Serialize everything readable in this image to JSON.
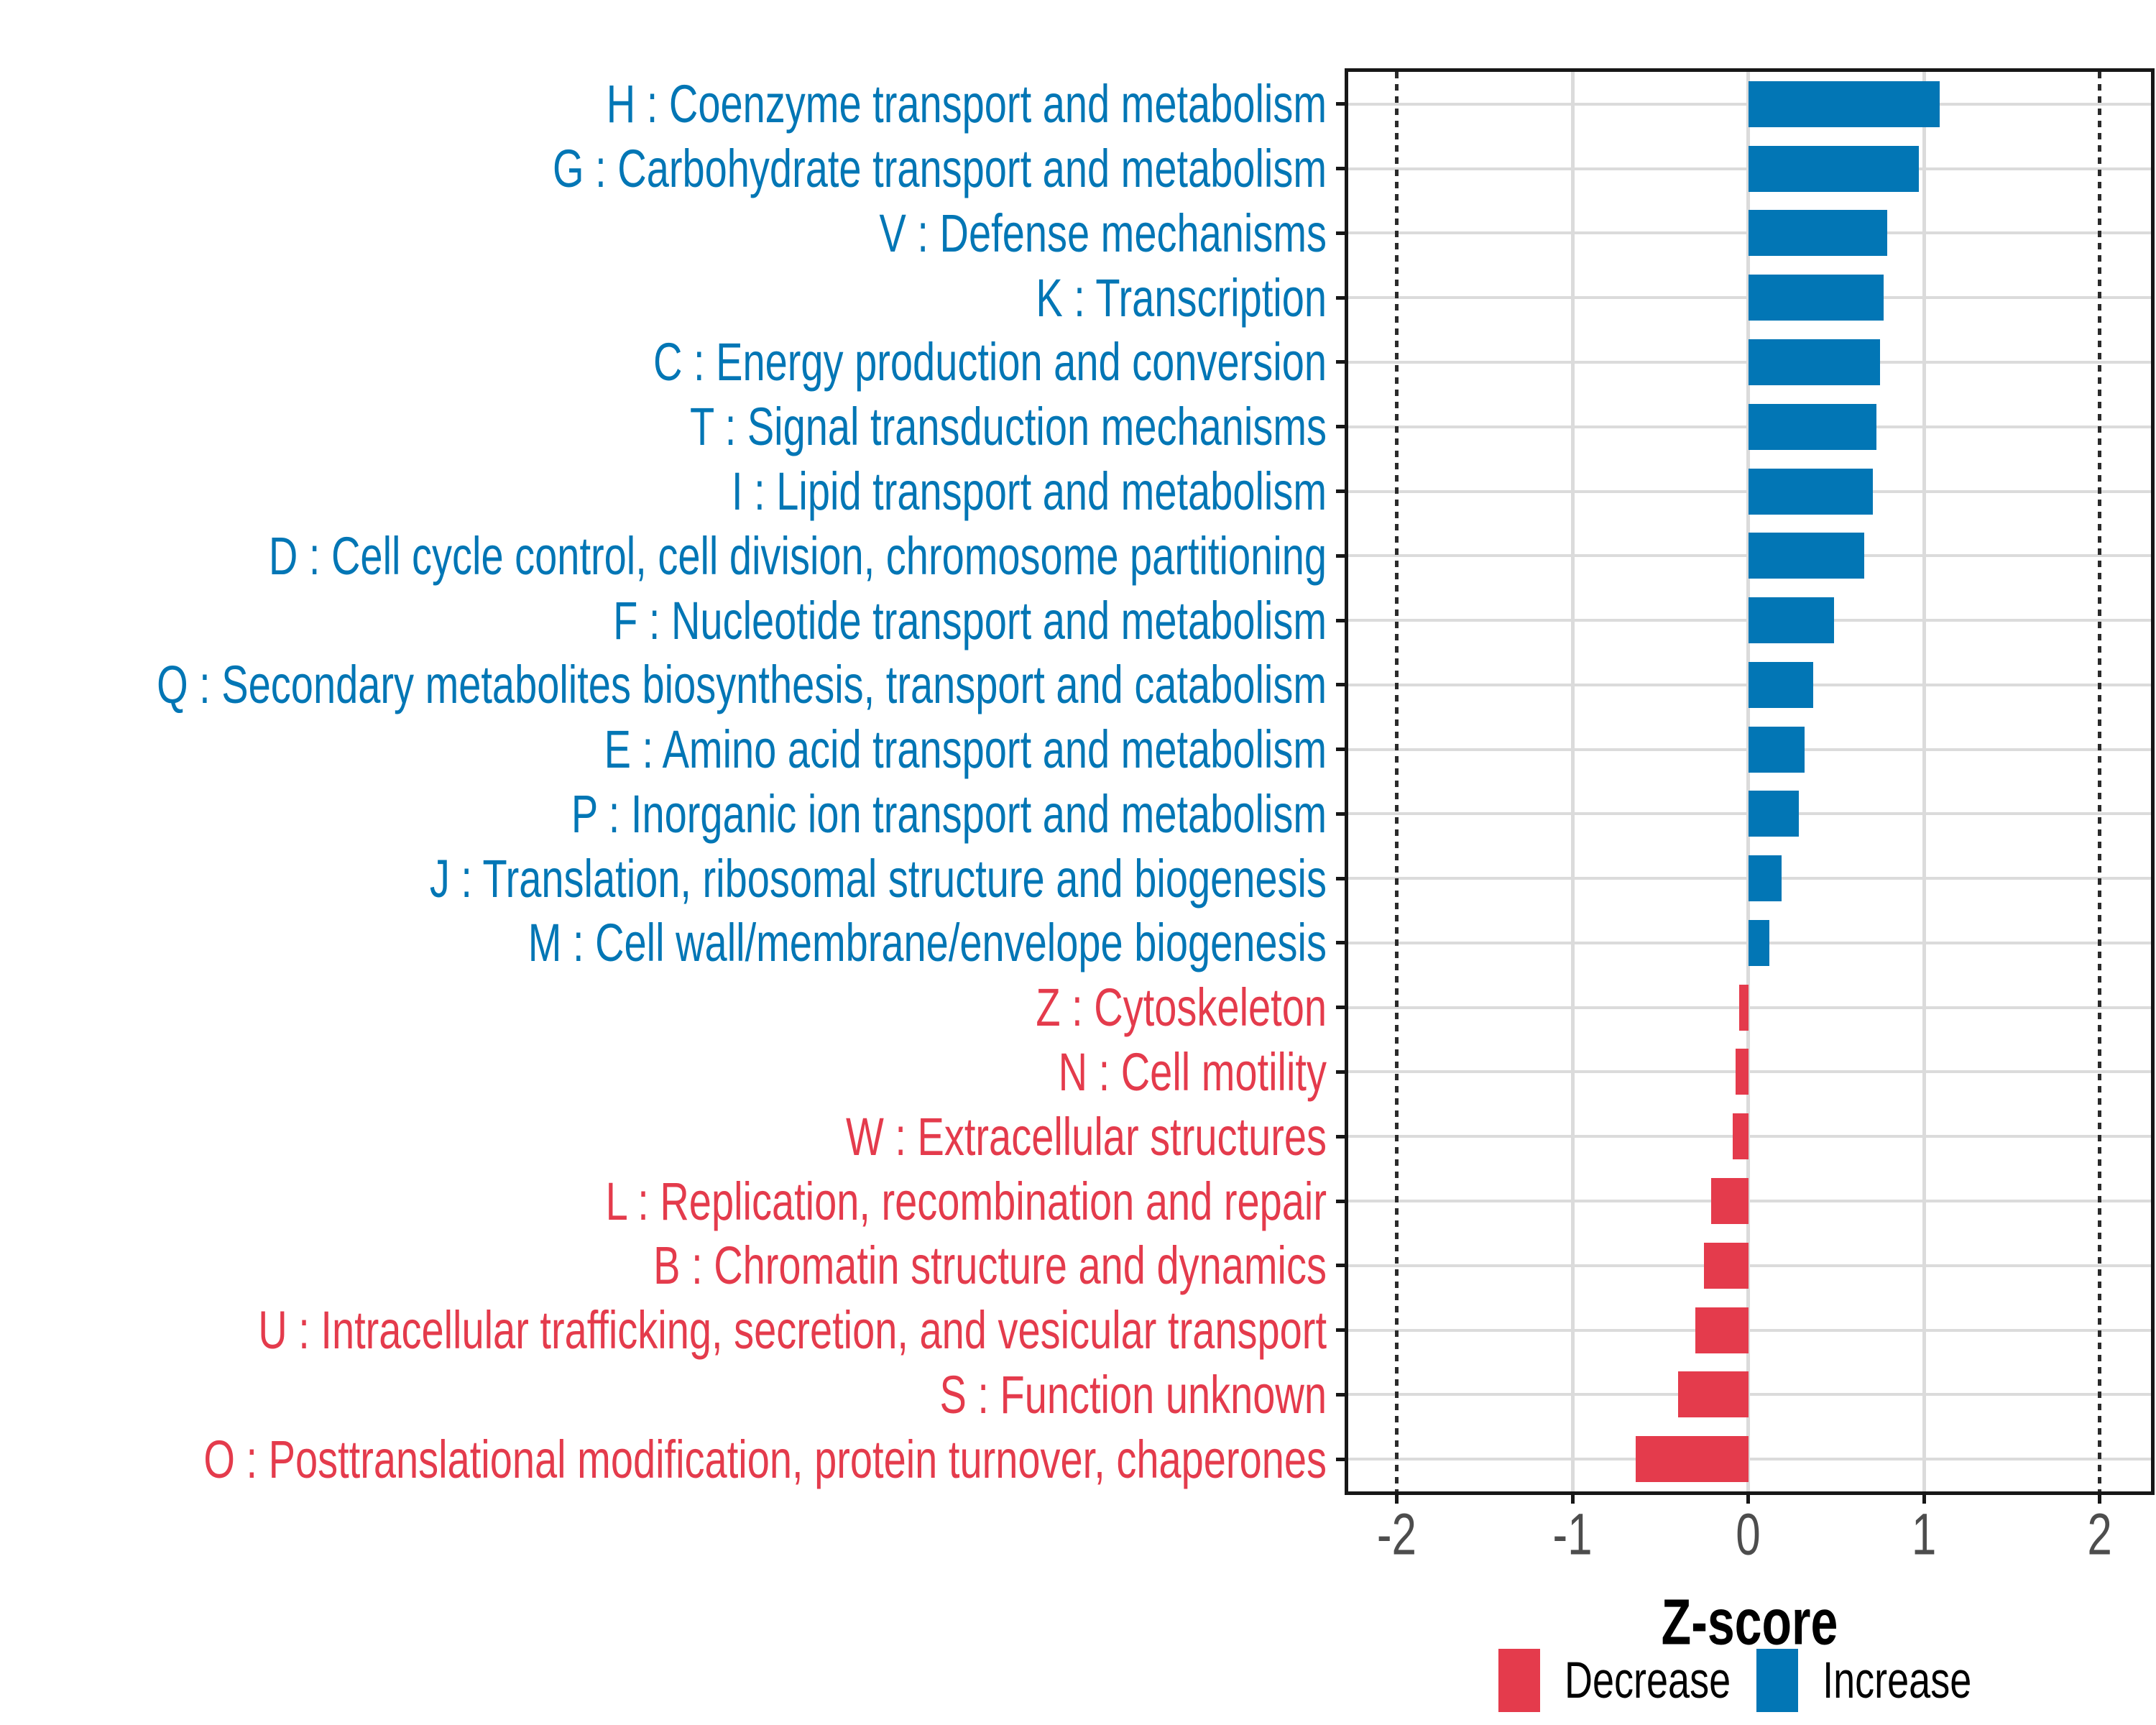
{
  "chart_data": {
    "type": "bar",
    "orientation": "horizontal",
    "title": "",
    "xlabel": "Z-score",
    "xlim": [
      -2.276,
      2.292
    ],
    "x_ticks": [
      -2,
      -1,
      0,
      1,
      2
    ],
    "x_tick_labels": [
      "-2",
      "-1",
      "0",
      "1",
      "2"
    ],
    "solid_gridlines_x": [
      -1,
      0,
      1
    ],
    "dotted_reference_lines_x": [
      -2,
      2
    ],
    "grid": "on",
    "legend_position": "bottom-right",
    "categories": [
      "H : Coenzyme transport and metabolism",
      "G : Carbohydrate transport and metabolism",
      "V : Defense mechanisms",
      "K : Transcription",
      "C : Energy production and conversion",
      "T : Signal transduction mechanisms",
      "I : Lipid transport and metabolism",
      "D : Cell cycle control, cell division, chromosome partitioning",
      "F : Nucleotide transport and metabolism",
      "Q : Secondary metabolites biosynthesis, transport and catabolism",
      "E : Amino acid transport and metabolism",
      "P : Inorganic ion transport and metabolism",
      "J : Translation, ribosomal structure and biogenesis",
      "M : Cell wall/membrane/envelope biogenesis",
      "Z : Cytoskeleton",
      "N : Cell motility",
      "W : Extracellular structures",
      "L : Replication, recombination and repair",
      "B : Chromatin structure and dynamics",
      "U : Intracellular trafficking, secretion, and vesicular transport",
      "S : Function unknown",
      "O : Posttranslational modification, protein turnover, chaperones"
    ],
    "values": [
      1.09,
      0.97,
      0.79,
      0.77,
      0.75,
      0.73,
      0.71,
      0.66,
      0.49,
      0.37,
      0.32,
      0.29,
      0.19,
      0.12,
      -0.05,
      -0.07,
      -0.09,
      -0.21,
      -0.25,
      -0.3,
      -0.4,
      -0.64
    ],
    "groups": [
      "Increase",
      "Increase",
      "Increase",
      "Increase",
      "Increase",
      "Increase",
      "Increase",
      "Increase",
      "Increase",
      "Increase",
      "Increase",
      "Increase",
      "Increase",
      "Increase",
      "Decrease",
      "Decrease",
      "Decrease",
      "Decrease",
      "Decrease",
      "Decrease",
      "Decrease",
      "Decrease"
    ],
    "legend": [
      {
        "label": "Decrease",
        "color": "#E43B4C"
      },
      {
        "label": "Increase",
        "color": "#0276B5"
      }
    ]
  },
  "colors": {
    "increase": "#0276B5",
    "decrease": "#E43B4C",
    "gridline": "#dbdbdb",
    "axis_text": "#4d4d4d",
    "panel_border": "#171717"
  }
}
